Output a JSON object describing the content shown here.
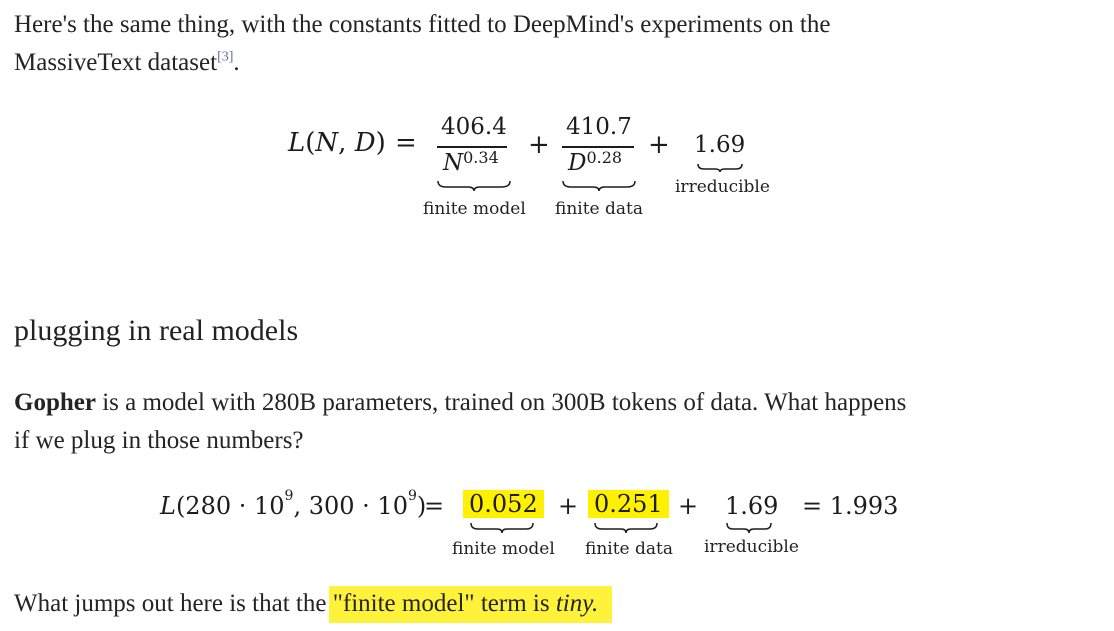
{
  "intro": {
    "text": "Here's the same thing, with the constants fitted to DeepMind's experiments on the",
    "text2": "MassiveText dataset",
    "citation": "[3]",
    "trail": "."
  },
  "formula1": {
    "lhs": "L(N, D)",
    "equals": "=",
    "term1_num": "406.4",
    "term1_den_base": "N",
    "term1_den_exp": "0.34",
    "plus1": "+",
    "term2_num": "410.7",
    "term2_den_base": "D",
    "term2_den_exp": "0.28",
    "plus2": "+",
    "term3": "1.69",
    "label1": "finite model",
    "label2": "finite data",
    "label3": "irreducible"
  },
  "section": {
    "heading": "plugging in real models"
  },
  "paragraph": {
    "bold": "Gopher",
    "rest_line1": " is a model with 280B parameters, trained on 300B tokens of data.  What happens",
    "line2": "if we plug in those numbers?"
  },
  "formula2": {
    "lhs_L": "L",
    "lhs_args_a": "(280 · 10",
    "exp_a": "9",
    "lhs_args_b": ",  300 · 10",
    "exp_b": "9",
    "lhs_close": ")",
    "equals": "=",
    "term1": "0.052",
    "plus1": "+",
    "term2": "0.251",
    "plus2": "+",
    "term3": "1.69",
    "result": "= 1.993",
    "label1": "finite model",
    "label2": "finite data",
    "label3": "irreducible"
  },
  "conclusion": {
    "text_a": "What jumps out here is that the ",
    "text_b": "\"finite model\" term is ",
    "text_italic": "tiny.",
    "highlight_color": "#fff100"
  }
}
